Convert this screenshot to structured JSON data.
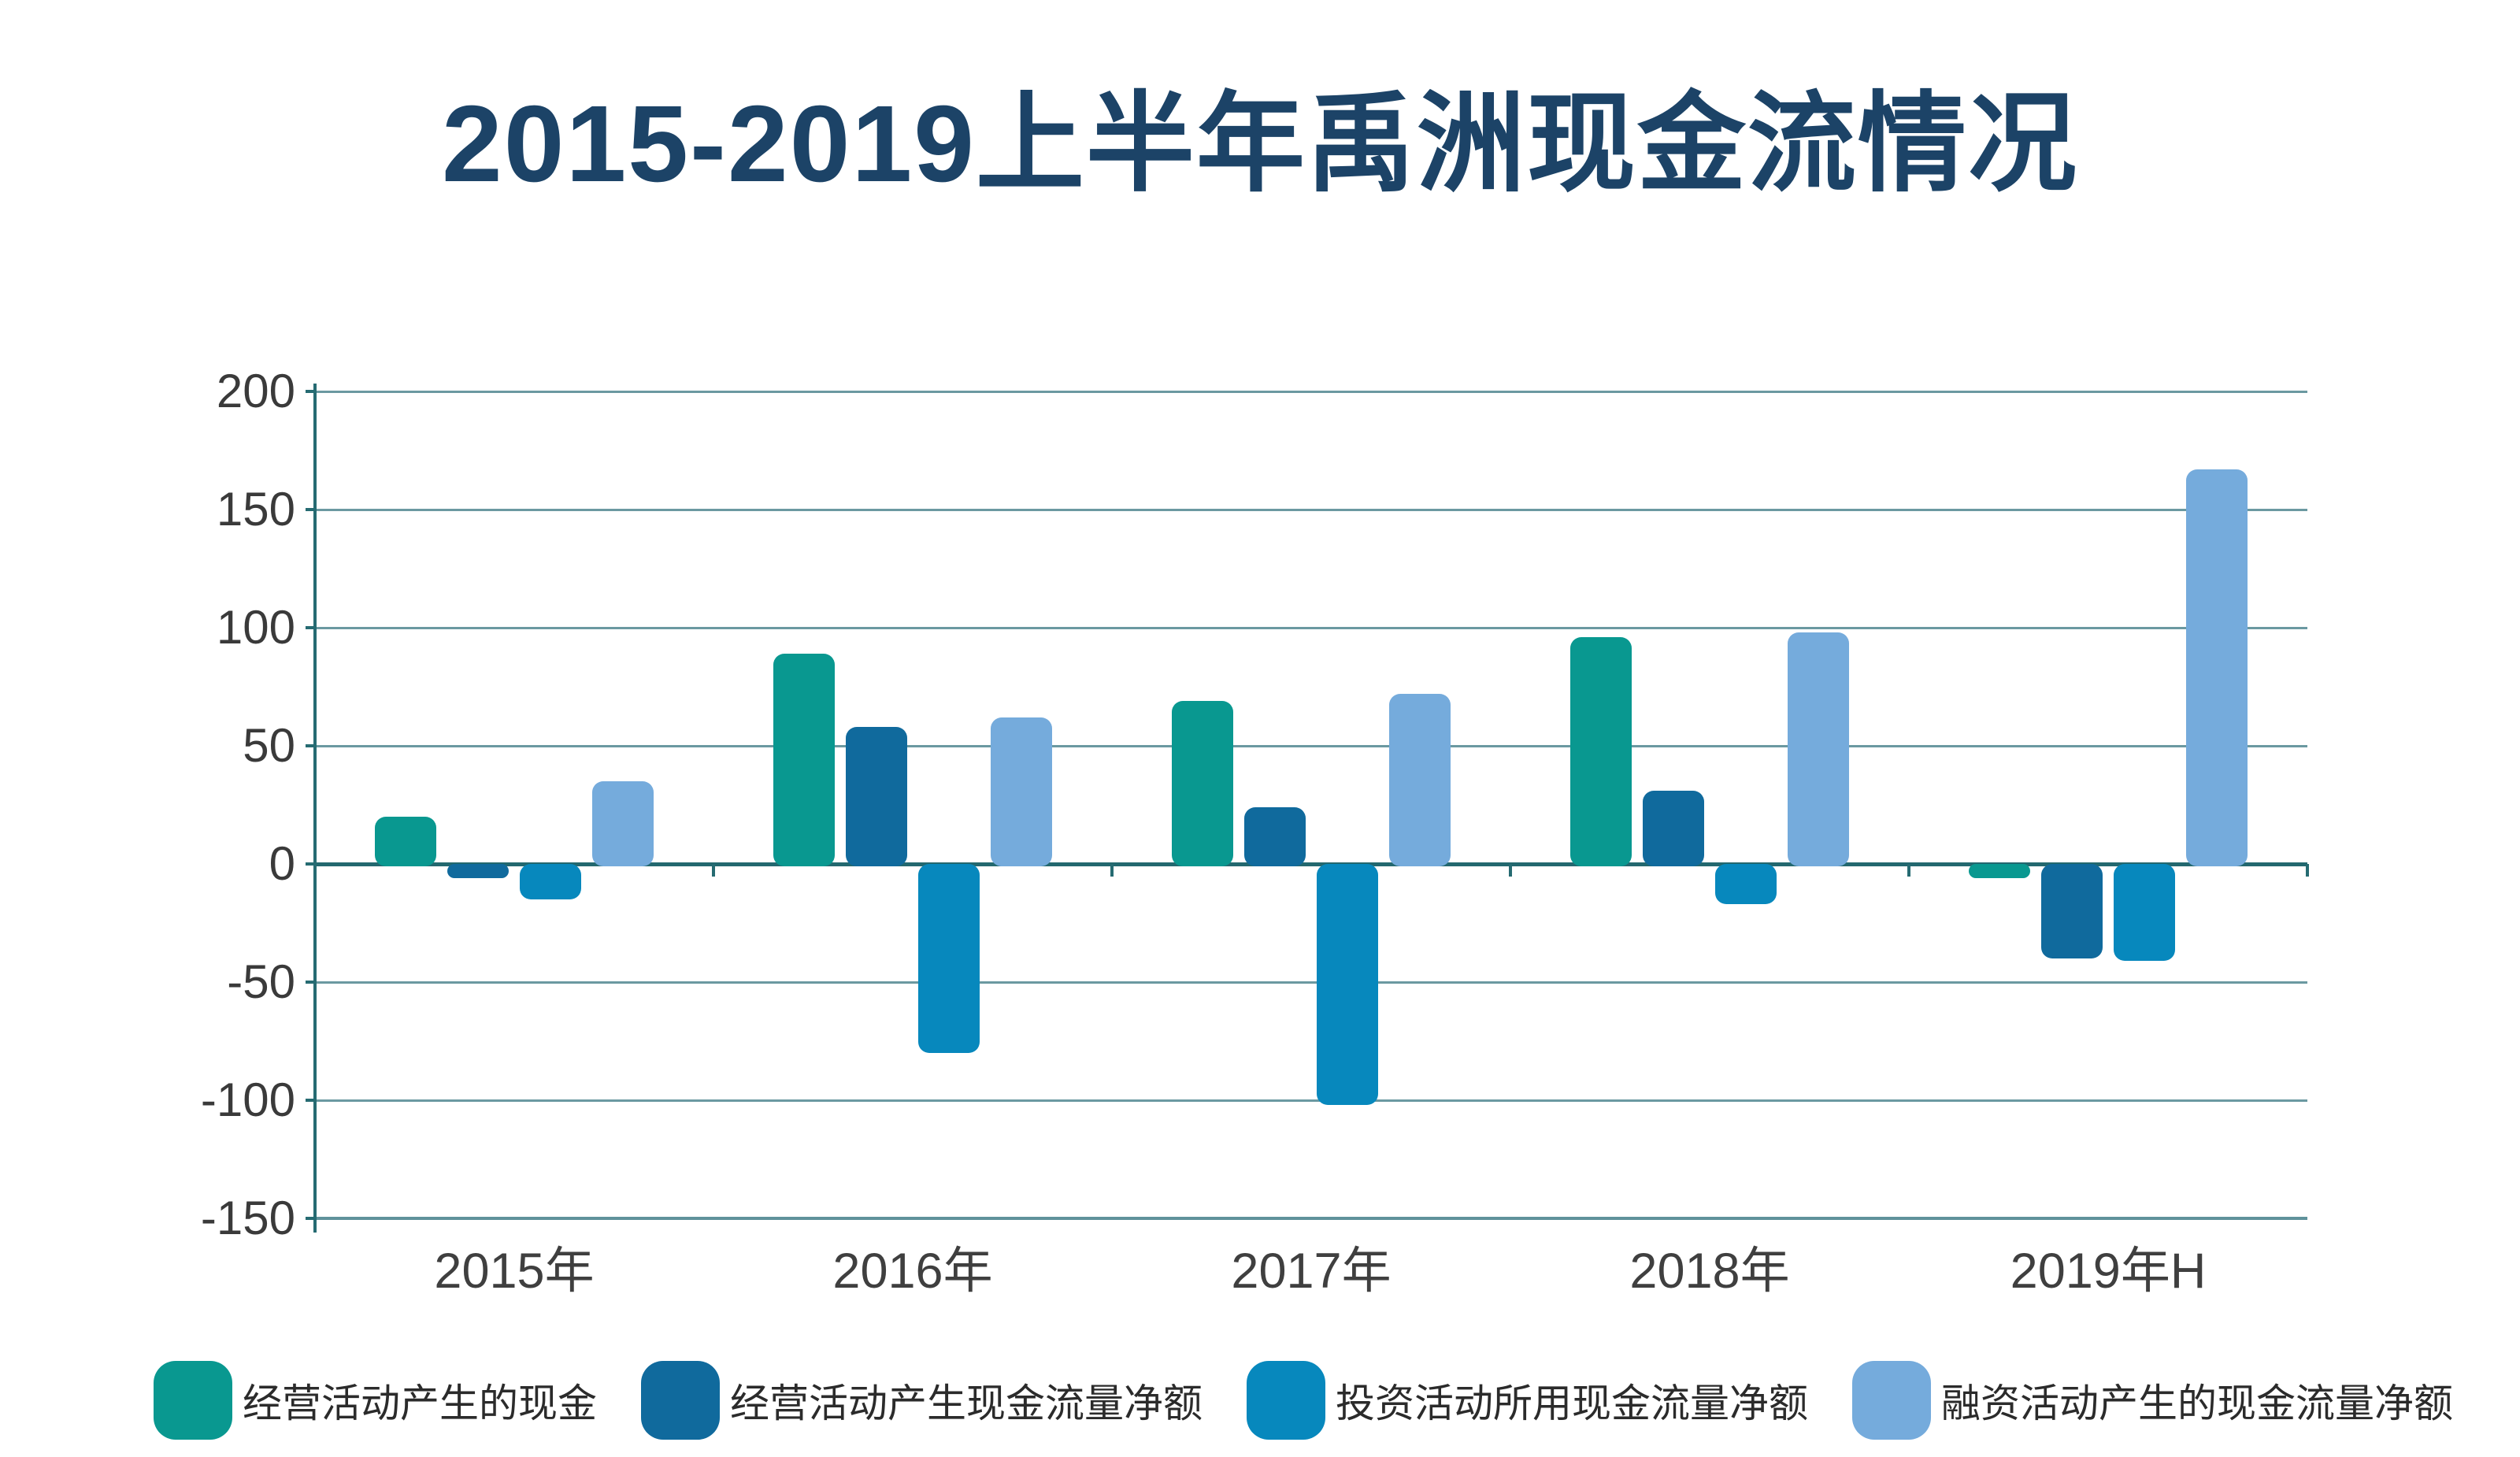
{
  "chart_data": {
    "type": "bar",
    "title": "2015-2019上半年禹洲现金流情况",
    "categories": [
      "2015年",
      "2016年",
      "2017年",
      "2018年",
      "2019年H"
    ],
    "series": [
      {
        "name": "经营活动产生的现金",
        "color": "#099890",
        "values": [
          20,
          89,
          69,
          96,
          -5
        ]
      },
      {
        "name": "经营活动产生现金流量净额",
        "color": "#106a9d",
        "values": [
          -5,
          58,
          24,
          31,
          -39
        ]
      },
      {
        "name": "投资活动所用现金流量净额",
        "color": "#0788bd",
        "values": [
          -14,
          -79,
          -101,
          -16,
          -40
        ]
      },
      {
        "name": "融资活动产生的现金流量净额",
        "color": "#75abdc",
        "values": [
          35,
          62,
          72,
          98,
          167
        ]
      }
    ],
    "ylim": [
      -150,
      200
    ],
    "yticks": [
      200,
      150,
      100,
      50,
      0,
      -50,
      -100,
      -150
    ],
    "xlabel": "",
    "ylabel": "",
    "grid": "horizontal",
    "legend_position": "bottom"
  },
  "colors": {
    "background": "#ffffff",
    "title": "#1c4367",
    "axis": "#266b72",
    "zero_line": "#23686f",
    "gridline": "#6b99a1",
    "bottom_line": "#5f929b",
    "tick_label": "#3a3a3a",
    "category_label": "#3f3f3f",
    "legend_text": "#2b2b2b"
  }
}
